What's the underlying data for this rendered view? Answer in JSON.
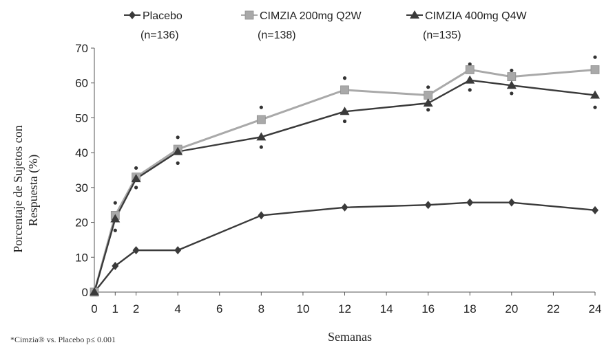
{
  "chart_data": {
    "type": "line",
    "x": [
      0,
      1,
      2,
      4,
      8,
      12,
      16,
      18,
      20,
      24
    ],
    "xticks": [
      "0",
      "1",
      "2",
      "4",
      "6",
      "8",
      "10",
      "12",
      "14",
      "16",
      "18",
      "20",
      "22",
      "24"
    ],
    "xtick_values": [
      0,
      1,
      2,
      4,
      6,
      8,
      10,
      12,
      14,
      16,
      18,
      20,
      22,
      24
    ],
    "yticks": [
      "0",
      "10",
      "20",
      "30",
      "40",
      "50",
      "60",
      "70"
    ],
    "ylim": [
      0,
      70
    ],
    "xlim": [
      0,
      24
    ],
    "xlabel": "Semanas",
    "ylabel_line1": "Porcentaje de Sujetos con",
    "ylabel_line2": "Respuesta (%)",
    "footnote": "*Cimzia® vs. Placebo p≤ 0.001",
    "grid": false,
    "legend_position": "top",
    "series": [
      {
        "name": "Placebo",
        "n_label": "(n=136)",
        "color": "#3a3a3a",
        "marker": "diamond",
        "values": [
          0,
          7.5,
          12,
          12,
          22,
          24.3,
          25,
          25.7,
          25.7,
          23.5
        ]
      },
      {
        "name": "CIMZIA 200mg Q2W",
        "n_label": "(n=138)",
        "color": "#a9a9a9",
        "marker": "square",
        "values": [
          0,
          22,
          33,
          41,
          49.5,
          58,
          56.5,
          63.8,
          61.8,
          63.8
        ]
      },
      {
        "name": "CIMZIA 400mg Q4W",
        "n_label": "(n=135)",
        "color": "#3a3a3a",
        "marker": "triangle",
        "values": [
          0,
          21,
          32.5,
          40.3,
          44.5,
          51.8,
          54.2,
          60.8,
          59.3,
          56.5
        ]
      }
    ],
    "significance_markers": [
      {
        "x": 1,
        "y": 25.6
      },
      {
        "x": 1,
        "y": 17.7
      },
      {
        "x": 2,
        "y": 35.6
      },
      {
        "x": 2,
        "y": 30.0
      },
      {
        "x": 4,
        "y": 44.4
      },
      {
        "x": 4,
        "y": 37.0
      },
      {
        "x": 8,
        "y": 53.0
      },
      {
        "x": 8,
        "y": 41.6
      },
      {
        "x": 12,
        "y": 61.4
      },
      {
        "x": 12,
        "y": 49.0
      },
      {
        "x": 16,
        "y": 58.8
      },
      {
        "x": 16,
        "y": 52.3
      },
      {
        "x": 18,
        "y": 65.4
      },
      {
        "x": 18,
        "y": 58.0
      },
      {
        "x": 20,
        "y": 63.6
      },
      {
        "x": 20,
        "y": 57.0
      },
      {
        "x": 24,
        "y": 67.4
      },
      {
        "x": 24,
        "y": 53.0
      }
    ]
  }
}
